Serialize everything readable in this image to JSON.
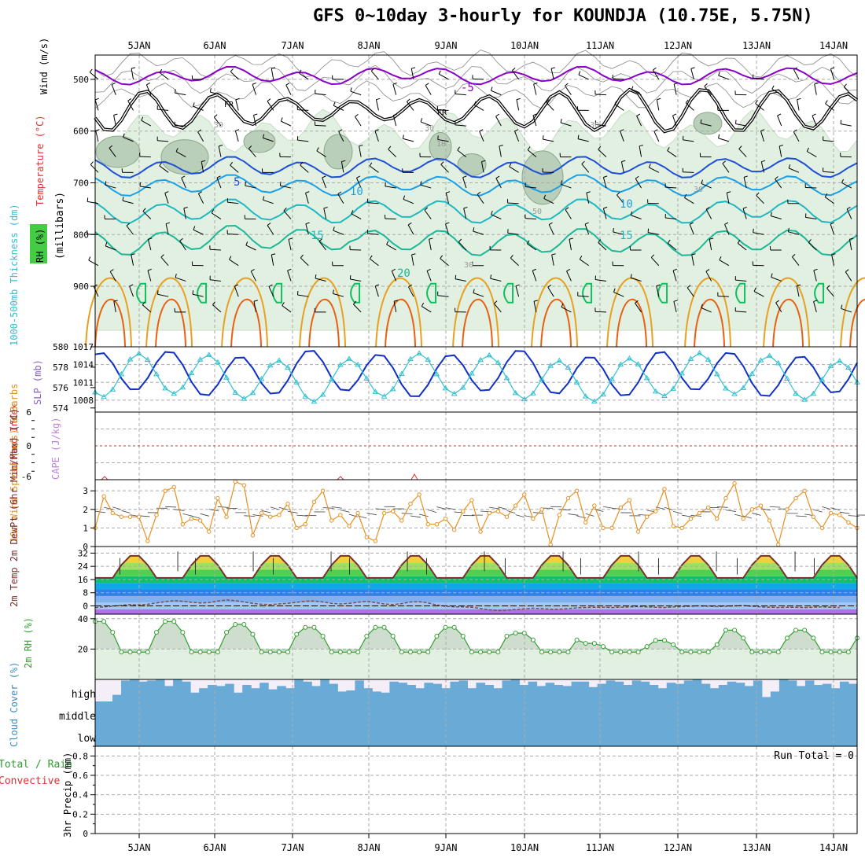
{
  "title": "GFS 0~10day 3-hourly for KOUNDJA (10.75E, 5.75N)",
  "dates": [
    "5JAN",
    "6JAN",
    "7JAN",
    "8JAN",
    "9JAN",
    "10JAN",
    "11JAN",
    "12JAN",
    "13JAN",
    "14JAN"
  ],
  "colors": {
    "grid": "#aaaaaa",
    "rh_fill_light": "#e2f0e2",
    "rh_fill_dark": "#b9cfb9",
    "t_purple": "#8a00c8",
    "t_black": "#000000",
    "t_blue": "#1e4fd8",
    "t_lightblue": "#1aa0e6",
    "t_cyan": "#1fb8c2",
    "t_teal": "#1bb898",
    "t_orange": "#e8a020",
    "t_dark_orange": "#e86010",
    "t_green": "#10c060",
    "slp": "#1030c8",
    "thickness": "#30c0d0",
    "cape": "#c080e0",
    "li": "#e03030",
    "wind10": "#e89020",
    "temp2m": "#7a3030",
    "dew": "#7a5050",
    "rh2m_line": "#30a030",
    "cloud": "#6aaad6",
    "cloud_bg": "#f3eef7",
    "convective": "#e03030",
    "total": "#30a030"
  },
  "chart_data": [
    {
      "panel": "upper-air",
      "type": "contour",
      "ylabel_wind": "Wind (m/s)",
      "ylabel_temp": "Temperature (°C)",
      "ylabel_rh": "RH (%)",
      "ylabel_pressure": "(millibars)",
      "y_ticks": [
        500,
        600,
        700,
        800,
        900
      ],
      "ylim": [
        1017,
        453
      ],
      "contour_labels": [
        "-5",
        "FR",
        "FR",
        "5",
        "10",
        "10",
        "15",
        "15",
        "20",
        "30",
        "30",
        "30",
        "30",
        "30",
        "50",
        "10"
      ]
    },
    {
      "panel": "slp-thickness",
      "type": "line",
      "ylabel_left": "1000-500mb Thickness (dm)",
      "ylabel_right": "SLP (mb)",
      "left_ticks": [
        574,
        576,
        578,
        580
      ],
      "right_ticks": [
        1008,
        1011,
        1014,
        1017
      ],
      "slp_base": 1012.5,
      "slp_amp": 3.5,
      "thickness_base": 577,
      "thickness_amp": 2
    },
    {
      "panel": "cape-li",
      "type": "line",
      "ylabel_li": "Lifted Index",
      "ylabel_cape": "CAPE (J/kg)",
      "li_ticks": [
        "6",
        "0",
        "-6"
      ],
      "ylim": [
        6,
        -6
      ]
    },
    {
      "panel": "wind10m",
      "type": "line",
      "ylabel": "10m Wind Speed (m/s) & Barbs",
      "y_ticks": [
        0,
        1,
        2,
        3
      ],
      "ylim": [
        0,
        3.6
      ],
      "values": [
        1.0,
        2.7,
        1.8,
        1.6,
        1.6,
        1.6,
        0.3,
        1.7,
        3.0,
        3.2,
        1.2,
        1.5,
        1.4,
        0.8,
        2.6,
        1.6,
        3.5,
        3.3,
        0.6,
        1.8,
        1.6,
        1.7,
        2.3,
        1.0,
        1.2,
        2.4,
        3.0,
        1.4,
        1.7,
        1.1,
        1.8,
        0.5,
        0.3,
        1.8,
        1.9,
        1.4,
        2.3,
        2.8,
        1.2,
        1.2,
        1.5,
        0.9,
        1.9,
        2.5,
        0.8,
        1.8,
        1.9,
        1.6,
        2.2,
        2.8,
        1.5,
        2.0,
        0.1,
        1.7,
        2.6,
        3.0,
        1.3,
        2.2,
        1.0,
        1.0,
        2.1,
        2.5,
        0.8,
        1.6,
        1.9,
        3.1,
        1.1,
        1.0,
        1.5,
        1.8,
        2.1,
        1.5,
        2.6,
        3.4,
        1.5,
        2.0,
        2.2,
        1.4,
        0.1,
        2.0,
        2.6,
        3.0,
        1.6,
        1.0,
        1.8,
        1.7,
        1.3,
        1.0
      ]
    },
    {
      "panel": "temp2m",
      "type": "area",
      "ylabel": "2m Temp 2m DewPt (6hr Min/Max) (°C)",
      "y_ticks": [
        0,
        8,
        16,
        24,
        32
      ],
      "ylim": [
        -5,
        36
      ],
      "temp_min": 17,
      "temp_max": 31,
      "dew_values": [
        -1.0,
        -0.6,
        -0.2,
        0.4,
        0.8,
        0.6,
        1.0,
        1.8,
        2.6,
        3.2,
        2.8,
        2.2,
        1.8,
        2.0,
        3.0,
        3.6,
        3.2,
        2.4,
        1.6,
        1.0,
        0.8,
        1.2,
        1.6,
        2.2,
        2.8,
        3.0,
        2.4,
        1.6,
        1.2,
        1.6,
        2.2,
        2.8,
        2.0,
        1.2,
        0.8,
        1.4,
        2.4,
        2.6,
        1.8,
        0.6,
        -0.2,
        -0.6,
        -0.6,
        -0.8,
        -1.6,
        -2.4,
        -2.8,
        -2.6,
        -2.2,
        -1.8,
        -1.4,
        -1.6,
        -2.0,
        -2.0,
        -1.6,
        -1.2,
        -1.0,
        -0.8,
        -0.8,
        -1.0,
        -0.8,
        -0.6,
        -0.4,
        -0.6,
        -0.8,
        -1.0,
        -0.6,
        -0.4,
        -0.2,
        0.0,
        -0.2,
        -0.4,
        -0.2,
        0.0,
        0.2,
        -0.2,
        -0.6,
        -0.8,
        -1.0,
        -0.8,
        -0.8,
        -1.0,
        -0.8,
        -0.6,
        -0.8,
        -1.0
      ]
    },
    {
      "panel": "rh2m",
      "type": "area",
      "ylabel": "2m RH (%)",
      "y_ticks": [
        20,
        40
      ],
      "ylim": [
        0,
        43
      ],
      "peaks": [
        39,
        39,
        37,
        35,
        35,
        35,
        31,
        24,
        26,
        33
      ],
      "trough": 18
    },
    {
      "panel": "cloud",
      "type": "bar",
      "ylabel": "Cloud Cover (%)",
      "levels": [
        "high",
        "middle",
        "low"
      ],
      "high_values": [
        0,
        0,
        30,
        95,
        100,
        90,
        95,
        100,
        70,
        100,
        90,
        40,
        60,
        75,
        70,
        80,
        40,
        75,
        60,
        85,
        55,
        70,
        60,
        100,
        90,
        70,
        100,
        80,
        45,
        50,
        95,
        60,
        45,
        40,
        90,
        85,
        75,
        60,
        85,
        80,
        60,
        90,
        95,
        60,
        85,
        75,
        60,
        95,
        100,
        75,
        90,
        70,
        85,
        75,
        70,
        90,
        90,
        65,
        80,
        95,
        90,
        75,
        95,
        90,
        75,
        60,
        85,
        80,
        95,
        100,
        80,
        60,
        75,
        90,
        85,
        70,
        95,
        20,
        45,
        100,
        95,
        70,
        95,
        75,
        80,
        60,
        90,
        80
      ]
    },
    {
      "panel": "precip",
      "type": "bar",
      "ylabel": "3hr Precip (mm)",
      "legend_total": "Total / Rain",
      "legend_convective": "Convective",
      "y_ticks": [
        "0",
        "0.2",
        "0.4",
        "0.6",
        "0.8"
      ],
      "ylim": [
        0,
        0.9
      ],
      "run_total": "Run Total = 0"
    }
  ]
}
